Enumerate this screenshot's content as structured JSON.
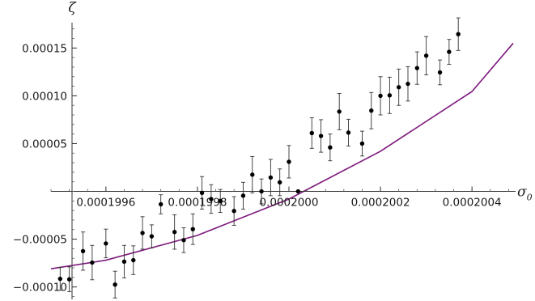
{
  "chart_data": {
    "type": "scatter",
    "xlabel": "σ",
    "xlabel_subscript": "0",
    "ylabel": "ζ",
    "xlim": [
      0.00019948,
      0.00020052
    ],
    "ylim": [
      -0.000113,
      0.000185
    ],
    "axes_origin": [
      0.00019948,
      0
    ],
    "x_ticks": [
      {
        "value": 0.0001996,
        "label": "0.0001996"
      },
      {
        "value": 0.0001998,
        "label": "0.0001998"
      },
      {
        "value": 0.0002,
        "label": "0.0002000"
      },
      {
        "value": 0.0002002,
        "label": "0.0002002"
      },
      {
        "value": 0.0002004,
        "label": "0.0002004"
      }
    ],
    "y_ticks": [
      {
        "value": -0.0001,
        "label": "−0.00010"
      },
      {
        "value": -5e-05,
        "label": "−0.00005"
      },
      {
        "value": 5e-05,
        "label": "0.00005"
      },
      {
        "value": 0.0001,
        "label": "0.00010"
      },
      {
        "value": 0.00015,
        "label": "0.00015"
      }
    ],
    "grid": false,
    "point_color": "#000000",
    "fit_color": "#7d1a7d",
    "points": [
      {
        "x": 0.0001995,
        "y": -9.15e-05,
        "err": 1.2e-05
      },
      {
        "x": 0.00019952,
        "y": -9.2e-05,
        "err": 1.3e-05
      },
      {
        "x": 0.00019955,
        "y": -6.25e-05,
        "err": 2e-05
      },
      {
        "x": 0.00019957,
        "y": -7.45e-05,
        "err": 1.8e-05
      },
      {
        "x": 0.0001996,
        "y": -5.45e-05,
        "err": 1.5e-05
      },
      {
        "x": 0.00019962,
        "y": -9.75e-05,
        "err": 1.4e-05
      },
      {
        "x": 0.00019964,
        "y": -7.35e-05,
        "err": 1.7e-05
      },
      {
        "x": 0.00019966,
        "y": -7.2e-05,
        "err": 1.5e-05
      },
      {
        "x": 0.00019968,
        "y": -4.35e-05,
        "err": 1.7e-05
      },
      {
        "x": 0.0001997,
        "y": -4.7e-05,
        "err": 1.2e-05
      },
      {
        "x": 0.00019972,
        "y": -1.35e-05,
        "err": 1e-05
      },
      {
        "x": 0.00019975,
        "y": -4.25e-05,
        "err": 1.8e-05
      },
      {
        "x": 0.00019977,
        "y": -5.1e-05,
        "err": 1.3e-05
      },
      {
        "x": 0.00019979,
        "y": -3.95e-05,
        "err": 1.6e-05
      },
      {
        "x": 0.00019981,
        "y": -1.5e-06,
        "err": 1.7e-05
      },
      {
        "x": 0.00019983,
        "y": -8e-06,
        "err": 1.5e-05
      },
      {
        "x": 0.00019985,
        "y": -1e-05,
        "err": 1.2e-05
      },
      {
        "x": 0.00019988,
        "y": -2.05e-05,
        "err": 1.5e-05
      },
      {
        "x": 0.0001999,
        "y": -4.5e-06,
        "err": 1.4e-05
      },
      {
        "x": 0.00019992,
        "y": 1.75e-05,
        "err": 1.9e-05
      },
      {
        "x": 0.00019994,
        "y": 0.0,
        "err": 1.3e-05
      },
      {
        "x": 0.00019996,
        "y": 1.45e-05,
        "err": 1.9e-05
      },
      {
        "x": 0.00019998,
        "y": 9.5e-06,
        "err": 1.4e-05
      },
      {
        "x": 0.0002,
        "y": 3.1e-05,
        "err": 1.7e-05
      },
      {
        "x": 0.00020002,
        "y": 0.0,
        "err": 0.0
      },
      {
        "x": 0.00020005,
        "y": 6.1e-05,
        "err": 1.6e-05
      },
      {
        "x": 0.00020007,
        "y": 5.8e-05,
        "err": 1.7e-05
      },
      {
        "x": 0.00020009,
        "y": 4.6e-05,
        "err": 1.4e-05
      },
      {
        "x": 0.00020011,
        "y": 8.35e-05,
        "err": 1.9e-05
      },
      {
        "x": 0.00020013,
        "y": 6.15e-05,
        "err": 1.4e-05
      },
      {
        "x": 0.00020016,
        "y": 5e-05,
        "err": 1.3e-05
      },
      {
        "x": 0.00020018,
        "y": 8.45e-05,
        "err": 1.9e-05
      },
      {
        "x": 0.0002002,
        "y": 0.0001,
        "err": 2e-05
      },
      {
        "x": 0.00020022,
        "y": 0.0001005,
        "err": 1.9e-05
      },
      {
        "x": 0.00020024,
        "y": 0.000109,
        "err": 1.9e-05
      },
      {
        "x": 0.00020026,
        "y": 0.0001125,
        "err": 1.8e-05
      },
      {
        "x": 0.00020028,
        "y": 0.000129,
        "err": 1.7e-05
      },
      {
        "x": 0.0002003,
        "y": 0.000142,
        "err": 2e-05
      },
      {
        "x": 0.00020033,
        "y": 0.0001245,
        "err": 1.3e-05
      },
      {
        "x": 0.00020035,
        "y": 0.000146,
        "err": 1.3e-05
      },
      {
        "x": 0.00020037,
        "y": 0.0001645,
        "err": 1.7e-05
      }
    ],
    "fit_curve": {
      "x": [
        0.00019948,
        0.0001996,
        0.0001998,
        0.0002,
        0.0002002,
        0.0002004,
        0.00020049
      ],
      "y": [
        -8.1e-05,
        -7.2e-05,
        -4.6e-05,
        -8e-06,
        4.2e-05,
        0.0001045,
        0.000155
      ]
    }
  }
}
